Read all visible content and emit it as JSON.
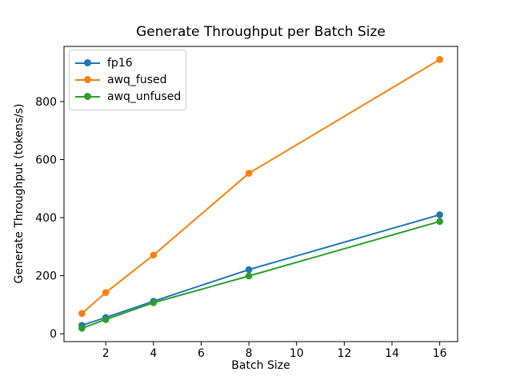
{
  "chart_data": {
    "type": "line",
    "title": "Generate Throughput per Batch Size",
    "xlabel": "Batch Size",
    "ylabel": "Generate Throughput (tokens/s)",
    "x": [
      1,
      2,
      4,
      8,
      16
    ],
    "series": [
      {
        "name": "fp16",
        "color": "#1f77b4",
        "values": [
          29,
          56,
          112,
          221,
          410
        ]
      },
      {
        "name": "awq_fused",
        "color": "#ff7f0e",
        "values": [
          70,
          142,
          271,
          553,
          945
        ]
      },
      {
        "name": "awq_unfused",
        "color": "#2ca02c",
        "values": [
          19,
          49,
          107,
          199,
          387
        ]
      }
    ],
    "x_ticks": [
      2,
      4,
      6,
      8,
      10,
      12,
      14,
      16
    ],
    "y_ticks": [
      0,
      200,
      400,
      600,
      800
    ],
    "xlim": [
      0.25,
      16.75
    ],
    "ylim": [
      -27,
      990
    ],
    "grid": false,
    "legend_position": "upper left",
    "marker": "o"
  }
}
